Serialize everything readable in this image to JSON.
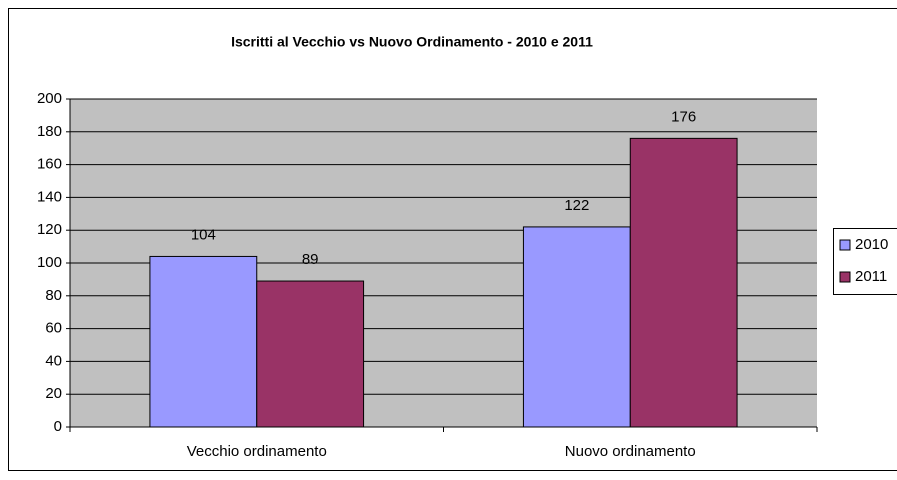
{
  "chart_data": {
    "type": "bar",
    "title": "Iscritti al Vecchio vs Nuovo Ordinamento - 2010 e 2011",
    "categories": [
      "Vecchio ordinamento",
      "Nuovo ordinamento"
    ],
    "series": [
      {
        "name": "2010",
        "color": "#9999ff",
        "values": [
          104,
          122
        ]
      },
      {
        "name": "2011",
        "color": "#993366",
        "values": [
          89,
          176
        ]
      }
    ],
    "ylim": [
      0,
      200
    ],
    "yticks": [
      0,
      20,
      40,
      60,
      80,
      100,
      120,
      140,
      160,
      180,
      200
    ],
    "grid": true,
    "legend": "right"
  }
}
